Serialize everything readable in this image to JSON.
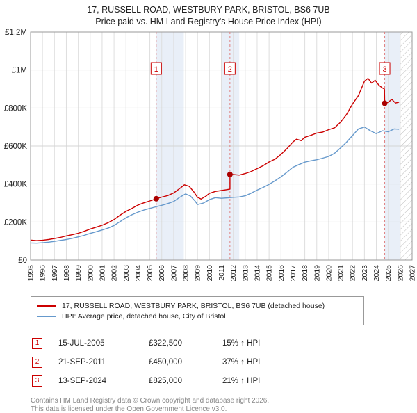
{
  "title": {
    "line1": "17, RUSSELL ROAD, WESTBURY PARK, BRISTOL, BS6 7UB",
    "line2": "Price paid vs. HM Land Registry's House Price Index (HPI)"
  },
  "chart_data": {
    "type": "line",
    "title": "17, RUSSELL ROAD, WESTBURY PARK, BRISTOL, BS6 7UB — Price paid vs. HPI",
    "xlabel": "",
    "ylabel": "",
    "xlim": [
      1995,
      2027
    ],
    "ylim": [
      0,
      1200000
    ],
    "grid": true,
    "legend_position": "below",
    "y_ticks": [
      0,
      200000,
      400000,
      600000,
      800000,
      1000000,
      1200000
    ],
    "y_tick_labels": [
      "£0",
      "£200K",
      "£400K",
      "£600K",
      "£800K",
      "£1M",
      "£1.2M"
    ],
    "x_ticks": [
      1995,
      1996,
      1997,
      1998,
      1999,
      2000,
      2001,
      2002,
      2003,
      2004,
      2005,
      2006,
      2007,
      2008,
      2009,
      2010,
      2011,
      2012,
      2013,
      2014,
      2015,
      2016,
      2017,
      2018,
      2019,
      2020,
      2021,
      2022,
      2023,
      2024,
      2025,
      2026,
      2027
    ],
    "band_color": "#e9eff8",
    "sale_line_color": "#e08080",
    "bands": [
      [
        2005.54,
        2007.85
      ],
      [
        2011.0,
        2012.5
      ],
      [
        2024.7,
        2026.0
      ]
    ],
    "hatch_region": [
      2026.0,
      2027.0
    ],
    "series": [
      {
        "name": "17, RUSSELL ROAD, WESTBURY PARK, BRISTOL, BS6 7UB (detached house)",
        "color": "#cc0000",
        "points": [
          [
            1995,
            105000
          ],
          [
            1995.5,
            102000
          ],
          [
            1996,
            104000
          ],
          [
            1996.5,
            108000
          ],
          [
            1997,
            113000
          ],
          [
            1997.5,
            119000
          ],
          [
            1998,
            127000
          ],
          [
            1998.5,
            133000
          ],
          [
            1999,
            141000
          ],
          [
            1999.5,
            151000
          ],
          [
            2000,
            163000
          ],
          [
            2000.5,
            173000
          ],
          [
            2001,
            183000
          ],
          [
            2001.5,
            196000
          ],
          [
            2002,
            213000
          ],
          [
            2002.5,
            236000
          ],
          [
            2003,
            256000
          ],
          [
            2003.5,
            272000
          ],
          [
            2004,
            289000
          ],
          [
            2004.5,
            301000
          ],
          [
            2005,
            311000
          ],
          [
            2005.54,
            322500
          ],
          [
            2006,
            331000
          ],
          [
            2006.5,
            339000
          ],
          [
            2007,
            353000
          ],
          [
            2007.5,
            376000
          ],
          [
            2007.9,
            396000
          ],
          [
            2008.3,
            388000
          ],
          [
            2008.7,
            358000
          ],
          [
            2009,
            330000
          ],
          [
            2009.3,
            321000
          ],
          [
            2009.7,
            336000
          ],
          [
            2010,
            351000
          ],
          [
            2010.5,
            361000
          ],
          [
            2011,
            366000
          ],
          [
            2011.4,
            370000
          ],
          [
            2011.72,
            373000
          ],
          [
            2011.72,
            450000
          ],
          [
            2012,
            450000
          ],
          [
            2012.5,
            447000
          ],
          [
            2013,
            455000
          ],
          [
            2013.5,
            466000
          ],
          [
            2014,
            481000
          ],
          [
            2014.5,
            496000
          ],
          [
            2015,
            516000
          ],
          [
            2015.5,
            531000
          ],
          [
            2016,
            556000
          ],
          [
            2016.5,
            586000
          ],
          [
            2017,
            621000
          ],
          [
            2017.3,
            636000
          ],
          [
            2017.7,
            628000
          ],
          [
            2018,
            646000
          ],
          [
            2018.5,
            656000
          ],
          [
            2019,
            668000
          ],
          [
            2019.5,
            673000
          ],
          [
            2020,
            686000
          ],
          [
            2020.5,
            696000
          ],
          [
            2021,
            726000
          ],
          [
            2021.5,
            766000
          ],
          [
            2022,
            821000
          ],
          [
            2022.5,
            866000
          ],
          [
            2023,
            941000
          ],
          [
            2023.3,
            956000
          ],
          [
            2023.6,
            931000
          ],
          [
            2023.9,
            946000
          ],
          [
            2024.2,
            921000
          ],
          [
            2024.5,
            906000
          ],
          [
            2024.68,
            900000
          ],
          [
            2024.7,
            825000
          ],
          [
            2025,
            831000
          ],
          [
            2025.3,
            846000
          ],
          [
            2025.6,
            826000
          ],
          [
            2025.9,
            831000
          ]
        ]
      },
      {
        "name": "HPI: Average price, detached house, City of Bristol",
        "color": "#6699cc",
        "points": [
          [
            1995,
            90000
          ],
          [
            1995.5,
            89000
          ],
          [
            1996,
            91000
          ],
          [
            1996.5,
            94000
          ],
          [
            1997,
            98000
          ],
          [
            1997.5,
            103000
          ],
          [
            1998,
            108000
          ],
          [
            1998.5,
            114000
          ],
          [
            1999,
            122000
          ],
          [
            1999.5,
            130000
          ],
          [
            2000,
            140000
          ],
          [
            2000.5,
            149000
          ],
          [
            2001,
            158000
          ],
          [
            2001.5,
            168000
          ],
          [
            2002,
            182000
          ],
          [
            2002.5,
            202000
          ],
          [
            2003,
            222000
          ],
          [
            2003.5,
            238000
          ],
          [
            2004,
            252000
          ],
          [
            2004.5,
            263000
          ],
          [
            2005,
            272000
          ],
          [
            2005.5,
            280000
          ],
          [
            2006,
            288000
          ],
          [
            2006.5,
            297000
          ],
          [
            2007,
            308000
          ],
          [
            2007.5,
            330000
          ],
          [
            2008,
            348000
          ],
          [
            2008.4,
            337000
          ],
          [
            2008.8,
            310000
          ],
          [
            2009,
            292000
          ],
          [
            2009.5,
            300000
          ],
          [
            2010,
            318000
          ],
          [
            2010.5,
            328000
          ],
          [
            2011,
            325000
          ],
          [
            2011.5,
            327000
          ],
          [
            2012,
            330000
          ],
          [
            2012.5,
            332000
          ],
          [
            2013,
            338000
          ],
          [
            2013.5,
            352000
          ],
          [
            2014,
            368000
          ],
          [
            2014.5,
            382000
          ],
          [
            2015,
            398000
          ],
          [
            2015.5,
            417000
          ],
          [
            2016,
            438000
          ],
          [
            2016.5,
            462000
          ],
          [
            2017,
            488000
          ],
          [
            2017.5,
            502000
          ],
          [
            2018,
            515000
          ],
          [
            2018.5,
            522000
          ],
          [
            2019,
            528000
          ],
          [
            2019.5,
            536000
          ],
          [
            2020,
            545000
          ],
          [
            2020.5,
            562000
          ],
          [
            2021,
            590000
          ],
          [
            2021.5,
            620000
          ],
          [
            2022,
            655000
          ],
          [
            2022.5,
            690000
          ],
          [
            2023,
            700000
          ],
          [
            2023.5,
            680000
          ],
          [
            2024,
            665000
          ],
          [
            2024.5,
            680000
          ],
          [
            2025,
            675000
          ],
          [
            2025.5,
            690000
          ],
          [
            2025.9,
            688000
          ]
        ]
      }
    ],
    "sales": [
      {
        "num": "1",
        "x": 2005.54,
        "y": 322500
      },
      {
        "num": "2",
        "x": 2011.72,
        "y": 450000
      },
      {
        "num": "3",
        "x": 2024.7,
        "y": 825000
      }
    ]
  },
  "legend": {
    "items": [
      {
        "label": "17, RUSSELL ROAD, WESTBURY PARK, BRISTOL, BS6 7UB (detached house)",
        "color": "#cc0000"
      },
      {
        "label": "HPI: Average price, detached house, City of Bristol",
        "color": "#6699cc"
      }
    ]
  },
  "transactions": [
    {
      "num": "1",
      "date": "15-JUL-2005",
      "price": "£322,500",
      "hpi": "15% ↑ HPI"
    },
    {
      "num": "2",
      "date": "21-SEP-2011",
      "price": "£450,000",
      "hpi": "37% ↑ HPI"
    },
    {
      "num": "3",
      "date": "13-SEP-2024",
      "price": "£825,000",
      "hpi": "21% ↑ HPI"
    }
  ],
  "footer": {
    "line1": "Contains HM Land Registry data © Crown copyright and database right 2026.",
    "line2": "This data is licensed under the Open Government Licence v3.0."
  }
}
